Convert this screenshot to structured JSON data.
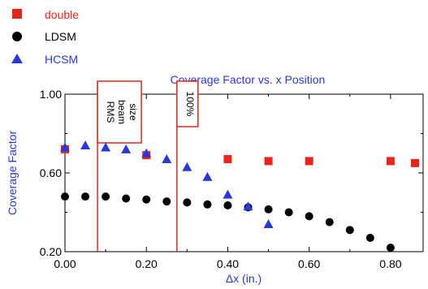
{
  "chart_data": {
    "type": "scatter",
    "title": "Coverage Factor vs. x Position",
    "xlabel": "Δx (in.)",
    "ylabel": "Coverage Factor",
    "xlim": [
      0.0,
      0.88
    ],
    "ylim": [
      0.2,
      1.0
    ],
    "xticks": [
      "0.00",
      "0.20",
      "0.40",
      "0.60",
      "0.80"
    ],
    "yticks": [
      "0.20",
      "0.60",
      "1.00"
    ],
    "grid": false,
    "legend_position": "top-left, above plot",
    "series": [
      {
        "name": "double",
        "color": "#e8251d",
        "marker": "square",
        "x": [
          0.0,
          0.2,
          0.4,
          0.5,
          0.6,
          0.8,
          0.86
        ],
        "y": [
          0.72,
          0.69,
          0.67,
          0.66,
          0.66,
          0.66,
          0.65
        ]
      },
      {
        "name": "LDSM",
        "color": "#000000",
        "marker": "circle",
        "x": [
          0.0,
          0.05,
          0.1,
          0.15,
          0.2,
          0.25,
          0.3,
          0.35,
          0.4,
          0.45,
          0.5,
          0.55,
          0.6,
          0.65,
          0.7,
          0.75,
          0.8
        ],
        "y": [
          0.48,
          0.48,
          0.48,
          0.47,
          0.465,
          0.455,
          0.45,
          0.44,
          0.435,
          0.425,
          0.415,
          0.4,
          0.38,
          0.35,
          0.31,
          0.27,
          0.22
        ]
      },
      {
        "name": "HCSM",
        "color": "#2a39d4",
        "marker": "triangle",
        "x": [
          0.0,
          0.05,
          0.1,
          0.15,
          0.2,
          0.25,
          0.3,
          0.35,
          0.4,
          0.45,
          0.5
        ],
        "y": [
          0.73,
          0.74,
          0.73,
          0.72,
          0.7,
          0.67,
          0.63,
          0.58,
          0.49,
          0.43,
          0.34
        ]
      }
    ],
    "annotations": [
      {
        "label_lines": [
          "RMS",
          "beam",
          "size"
        ],
        "x": 0.08
      },
      {
        "label_lines": [
          "100%"
        ],
        "x": 0.275
      }
    ]
  }
}
